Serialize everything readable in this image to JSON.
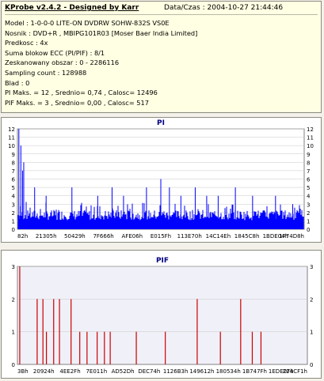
{
  "header": {
    "title": "KProbe v2.4.2 - Designed by Karr",
    "date": "Data/Czas : 2004-10-27 21:44:46"
  },
  "info_lines": [
    "Model : 1-0-0-0 LITE-ON DVDRW SOHW-832S  VS0E",
    "Nosnik : DVD+R , MBIPG101R03 [Moser Baer India Limited]",
    "Predkosc : 4x",
    "Suma blokow ECC (PI/PIF) : 8/1",
    "Zeskanowany obszar : 0 - 2286116",
    "Sampling count : 128988",
    "Blad : 0",
    "PI Maks. = 12 , Srednio= 0,74 , Calosc= 12496",
    "PIF Maks. = 3 , Srednio= 0,00 , Calosc= 517"
  ],
  "colors": {
    "pi_bar": "#0000ff",
    "pif_bar": "#cc0000",
    "pif_bg": "#f0f0f8",
    "axis_title": "#000080"
  },
  "chart_data": [
    {
      "type": "bar",
      "title": "PI",
      "ylim": [
        0,
        12
      ],
      "yticks": [
        "0",
        "1",
        "2",
        "3",
        "4",
        "5",
        "6",
        "7",
        "8",
        "9",
        "10",
        "11",
        "12"
      ],
      "xticks": [
        "82h",
        "21305h",
        "50429h",
        "7F666h",
        "AFE06h",
        "E015Fh",
        "113E70h",
        "14C14Eh",
        "1845C8h",
        "1BDE04h",
        "1F74D8h"
      ],
      "grid": true,
      "baseline_level": 2,
      "spikes": [
        {
          "x": 0.005,
          "v": 12
        },
        {
          "x": 0.012,
          "v": 10
        },
        {
          "x": 0.018,
          "v": 7
        },
        {
          "x": 0.022,
          "v": 8
        },
        {
          "x": 0.06,
          "v": 5
        },
        {
          "x": 0.1,
          "v": 4
        },
        {
          "x": 0.19,
          "v": 5
        },
        {
          "x": 0.28,
          "v": 4
        },
        {
          "x": 0.33,
          "v": 5
        },
        {
          "x": 0.37,
          "v": 4
        },
        {
          "x": 0.45,
          "v": 5
        },
        {
          "x": 0.5,
          "v": 6
        },
        {
          "x": 0.53,
          "v": 5
        },
        {
          "x": 0.57,
          "v": 4
        },
        {
          "x": 0.62,
          "v": 5
        },
        {
          "x": 0.66,
          "v": 4
        },
        {
          "x": 0.7,
          "v": 4
        },
        {
          "x": 0.76,
          "v": 5
        },
        {
          "x": 0.82,
          "v": 4
        },
        {
          "x": 0.9,
          "v": 4
        },
        {
          "x": 0.96,
          "v": 3
        }
      ]
    },
    {
      "type": "bar",
      "title": "PIF",
      "ylim": [
        0,
        3
      ],
      "yticks": [
        "0",
        "1",
        "2",
        "3"
      ],
      "xticks": [
        "3Bh",
        "20924h",
        "4EE2Fh",
        "7E011h",
        "AD52Dh",
        "DEC74h",
        "1126B3h",
        "149612h",
        "180534h",
        "1B747Fh",
        "1EDE0Fh",
        "224CF1h"
      ],
      "grid": true,
      "values": [
        {
          "x": 0.008,
          "v": 3
        },
        {
          "x": 0.068,
          "v": 2
        },
        {
          "x": 0.088,
          "v": 2
        },
        {
          "x": 0.1,
          "v": 1
        },
        {
          "x": 0.125,
          "v": 2
        },
        {
          "x": 0.145,
          "v": 2
        },
        {
          "x": 0.185,
          "v": 2
        },
        {
          "x": 0.215,
          "v": 1
        },
        {
          "x": 0.24,
          "v": 1
        },
        {
          "x": 0.275,
          "v": 1
        },
        {
          "x": 0.3,
          "v": 1
        },
        {
          "x": 0.32,
          "v": 1
        },
        {
          "x": 0.41,
          "v": 1
        },
        {
          "x": 0.51,
          "v": 1
        },
        {
          "x": 0.62,
          "v": 2
        },
        {
          "x": 0.7,
          "v": 1
        },
        {
          "x": 0.77,
          "v": 2
        },
        {
          "x": 0.81,
          "v": 1
        },
        {
          "x": 0.84,
          "v": 1
        }
      ]
    }
  ]
}
